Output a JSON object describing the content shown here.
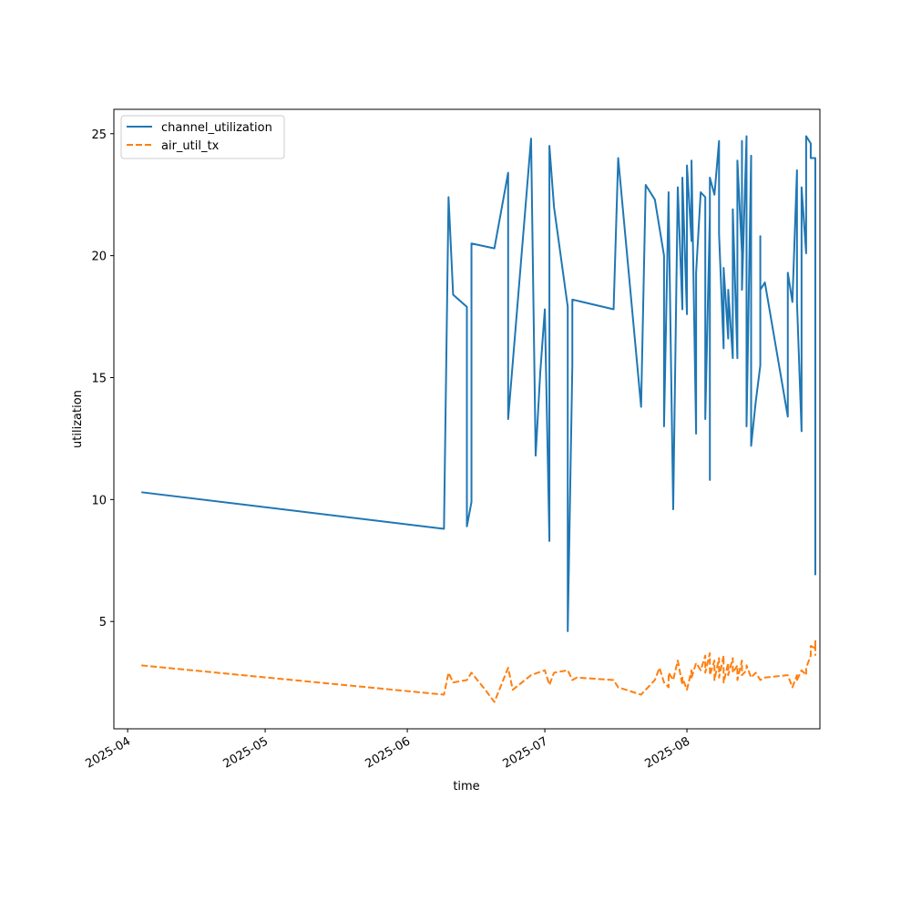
{
  "chart_data": {
    "type": "line",
    "title": "",
    "xlabel": "time",
    "ylabel": "utilization",
    "xlim": [
      "2025-03-29",
      "2025-08-30"
    ],
    "ylim": [
      0.6,
      26.0
    ],
    "x_ticks": [
      {
        "date": "2025-04-01",
        "label": "2025-04"
      },
      {
        "date": "2025-05-01",
        "label": "2025-05"
      },
      {
        "date": "2025-06-01",
        "label": "2025-06"
      },
      {
        "date": "2025-07-01",
        "label": "2025-07"
      },
      {
        "date": "2025-08-01",
        "label": "2025-08"
      }
    ],
    "y_ticks": [
      5,
      10,
      15,
      20,
      25
    ],
    "grid": false,
    "legend": "upper-left",
    "series": [
      {
        "name": "channel_utilization",
        "color": "#1f77b4",
        "dash": "solid",
        "points": [
          [
            "2025-04-04",
            10.3
          ],
          [
            "2025-06-09",
            8.8
          ],
          [
            "2025-06-10",
            22.4
          ],
          [
            "2025-06-11",
            18.4
          ],
          [
            "2025-06-14",
            17.9
          ],
          [
            "2025-06-14",
            8.9
          ],
          [
            "2025-06-15",
            9.9
          ],
          [
            "2025-06-15",
            10.3
          ],
          [
            "2025-06-15",
            20.5
          ],
          [
            "2025-06-20",
            20.3
          ],
          [
            "2025-06-23",
            23.4
          ],
          [
            "2025-06-23",
            13.3
          ],
          [
            "2025-06-27",
            22.5
          ],
          [
            "2025-06-28",
            24.8
          ],
          [
            "2025-06-29",
            11.8
          ],
          [
            "2025-06-30",
            15.2
          ],
          [
            "2025-07-01",
            17.8
          ],
          [
            "2025-07-02",
            8.3
          ],
          [
            "2025-07-02",
            24.5
          ],
          [
            "2025-07-03",
            22.0
          ],
          [
            "2025-07-06",
            17.9
          ],
          [
            "2025-07-06",
            4.6
          ],
          [
            "2025-07-07",
            15.5
          ],
          [
            "2025-07-07",
            18.2
          ],
          [
            "2025-07-16",
            17.8
          ],
          [
            "2025-07-17",
            24.0
          ],
          [
            "2025-07-22",
            13.8
          ],
          [
            "2025-07-23",
            22.9
          ],
          [
            "2025-07-25",
            22.3
          ],
          [
            "2025-07-27",
            20.0
          ],
          [
            "2025-07-27",
            13.0
          ],
          [
            "2025-07-28",
            22.6
          ],
          [
            "2025-07-28",
            22.2
          ],
          [
            "2025-07-29",
            9.6
          ],
          [
            "2025-07-30",
            22.8
          ],
          [
            "2025-07-31",
            17.8
          ],
          [
            "2025-07-31",
            23.2
          ],
          [
            "2025-08-01",
            17.6
          ],
          [
            "2025-08-01",
            23.7
          ],
          [
            "2025-08-02",
            20.6
          ],
          [
            "2025-08-02",
            23.9
          ],
          [
            "2025-08-03",
            12.7
          ],
          [
            "2025-08-03",
            19.3
          ],
          [
            "2025-08-04",
            22.6
          ],
          [
            "2025-08-05",
            22.4
          ],
          [
            "2025-08-05",
            13.3
          ],
          [
            "2025-08-06",
            21.7
          ],
          [
            "2025-08-06",
            10.8
          ],
          [
            "2025-08-06",
            23.2
          ],
          [
            "2025-08-07",
            22.5
          ],
          [
            "2025-08-08",
            24.7
          ],
          [
            "2025-08-08",
            20.9
          ],
          [
            "2025-08-09",
            16.2
          ],
          [
            "2025-08-09",
            19.5
          ],
          [
            "2025-08-10",
            16.6
          ],
          [
            "2025-08-10",
            18.6
          ],
          [
            "2025-08-11",
            15.8
          ],
          [
            "2025-08-11",
            21.9
          ],
          [
            "2025-08-12",
            15.8
          ],
          [
            "2025-08-12",
            23.9
          ],
          [
            "2025-08-13",
            20.1
          ],
          [
            "2025-08-13",
            24.7
          ],
          [
            "2025-08-13",
            18.6
          ],
          [
            "2025-08-14",
            24.9
          ],
          [
            "2025-08-14",
            13.0
          ],
          [
            "2025-08-15",
            24.1
          ],
          [
            "2025-08-15",
            12.2
          ],
          [
            "2025-08-16",
            14.0
          ],
          [
            "2025-08-17",
            15.5
          ],
          [
            "2025-08-17",
            20.8
          ],
          [
            "2025-08-17",
            18.6
          ],
          [
            "2025-08-18",
            18.9
          ],
          [
            "2025-08-23",
            13.4
          ],
          [
            "2025-08-23",
            19.3
          ],
          [
            "2025-08-24",
            18.1
          ],
          [
            "2025-08-25",
            23.5
          ],
          [
            "2025-08-25",
            18.1
          ],
          [
            "2025-08-26",
            12.8
          ],
          [
            "2025-08-26",
            22.8
          ],
          [
            "2025-08-27",
            20.1
          ],
          [
            "2025-08-27",
            24.9
          ],
          [
            "2025-08-28",
            24.6
          ],
          [
            "2025-08-28",
            24.0
          ],
          [
            "2025-08-29",
            24.0
          ],
          [
            "2025-08-29",
            17.8
          ],
          [
            "2025-08-29",
            20.2
          ],
          [
            "2025-08-29",
            6.9
          ]
        ]
      },
      {
        "name": "air_util_tx",
        "color": "#ff7f0e",
        "dash": "dashed",
        "points": [
          [
            "2025-04-04",
            3.2
          ],
          [
            "2025-06-09",
            2.0
          ],
          [
            "2025-06-10",
            2.9
          ],
          [
            "2025-06-11",
            2.5
          ],
          [
            "2025-06-14",
            2.6
          ],
          [
            "2025-06-15",
            2.9
          ],
          [
            "2025-06-18",
            2.2
          ],
          [
            "2025-06-20",
            1.7
          ],
          [
            "2025-06-23",
            3.1
          ],
          [
            "2025-06-24",
            2.2
          ],
          [
            "2025-06-28",
            2.8
          ],
          [
            "2025-07-01",
            3.0
          ],
          [
            "2025-07-02",
            2.4
          ],
          [
            "2025-07-03",
            2.9
          ],
          [
            "2025-07-06",
            3.0
          ],
          [
            "2025-07-07",
            2.6
          ],
          [
            "2025-07-08",
            2.7
          ],
          [
            "2025-07-16",
            2.6
          ],
          [
            "2025-07-17",
            2.3
          ],
          [
            "2025-07-22",
            2.0
          ],
          [
            "2025-07-25",
            2.6
          ],
          [
            "2025-07-26",
            3.1
          ],
          [
            "2025-07-27",
            2.5
          ],
          [
            "2025-07-28",
            2.3
          ],
          [
            "2025-07-28",
            2.9
          ],
          [
            "2025-07-29",
            2.6
          ],
          [
            "2025-07-30",
            3.4
          ],
          [
            "2025-07-31",
            2.4
          ],
          [
            "2025-07-31",
            2.7
          ],
          [
            "2025-08-01",
            2.2
          ],
          [
            "2025-08-02",
            3.0
          ],
          [
            "2025-08-02",
            2.7
          ],
          [
            "2025-08-03",
            3.3
          ],
          [
            "2025-08-04",
            3.0
          ],
          [
            "2025-08-05",
            3.6
          ],
          [
            "2025-08-05",
            2.9
          ],
          [
            "2025-08-06",
            3.7
          ],
          [
            "2025-08-06",
            2.8
          ],
          [
            "2025-08-07",
            3.4
          ],
          [
            "2025-08-07",
            2.6
          ],
          [
            "2025-08-08",
            3.5
          ],
          [
            "2025-08-08",
            2.7
          ],
          [
            "2025-08-09",
            3.6
          ],
          [
            "2025-08-09",
            2.5
          ],
          [
            "2025-08-10",
            3.3
          ],
          [
            "2025-08-10",
            2.8
          ],
          [
            "2025-08-11",
            3.5
          ],
          [
            "2025-08-11",
            2.9
          ],
          [
            "2025-08-12",
            3.2
          ],
          [
            "2025-08-12",
            2.6
          ],
          [
            "2025-08-13",
            3.4
          ],
          [
            "2025-08-13",
            2.8
          ],
          [
            "2025-08-14",
            3.0
          ],
          [
            "2025-08-14",
            3.2
          ],
          [
            "2025-08-15",
            2.7
          ],
          [
            "2025-08-16",
            2.9
          ],
          [
            "2025-08-17",
            2.6
          ],
          [
            "2025-08-18",
            2.7
          ],
          [
            "2025-08-23",
            2.8
          ],
          [
            "2025-08-24",
            2.3
          ],
          [
            "2025-08-25",
            2.8
          ],
          [
            "2025-08-25",
            2.6
          ],
          [
            "2025-08-26",
            3.0
          ],
          [
            "2025-08-27",
            2.8
          ],
          [
            "2025-08-27",
            3.1
          ],
          [
            "2025-08-28",
            3.6
          ],
          [
            "2025-08-28",
            4.0
          ],
          [
            "2025-08-29",
            3.9
          ],
          [
            "2025-08-29",
            4.2
          ],
          [
            "2025-08-29",
            3.6
          ]
        ]
      }
    ]
  }
}
